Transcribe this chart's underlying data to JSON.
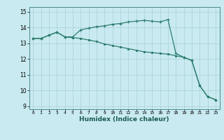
{
  "xlabel": "Humidex (Indice chaleur)",
  "x": [
    0,
    1,
    2,
    3,
    4,
    5,
    6,
    7,
    8,
    9,
    10,
    11,
    12,
    13,
    14,
    15,
    16,
    17,
    18,
    19,
    20,
    21,
    22,
    23
  ],
  "line1": [
    13.3,
    13.3,
    13.5,
    13.7,
    13.4,
    13.4,
    13.85,
    13.95,
    14.05,
    14.1,
    14.2,
    14.25,
    14.35,
    14.4,
    14.45,
    14.4,
    14.35,
    14.5,
    12.35,
    12.1,
    11.9,
    10.3,
    9.6,
    9.4
  ],
  "line2": [
    13.3,
    13.3,
    13.5,
    13.7,
    13.4,
    13.35,
    13.3,
    13.2,
    13.1,
    12.95,
    12.85,
    12.75,
    12.65,
    12.55,
    12.45,
    12.4,
    12.35,
    12.3,
    12.2,
    12.1,
    11.9,
    10.3,
    9.6,
    9.4
  ],
  "line_color": "#2e7d6e",
  "bg_color": "#c8eaf0",
  "grid_color": "#b0d4dc",
  "ylim": [
    8.8,
    15.3
  ],
  "yticks": [
    9,
    10,
    11,
    12,
    13,
    14,
    15
  ],
  "xlim": [
    -0.5,
    23.5
  ]
}
